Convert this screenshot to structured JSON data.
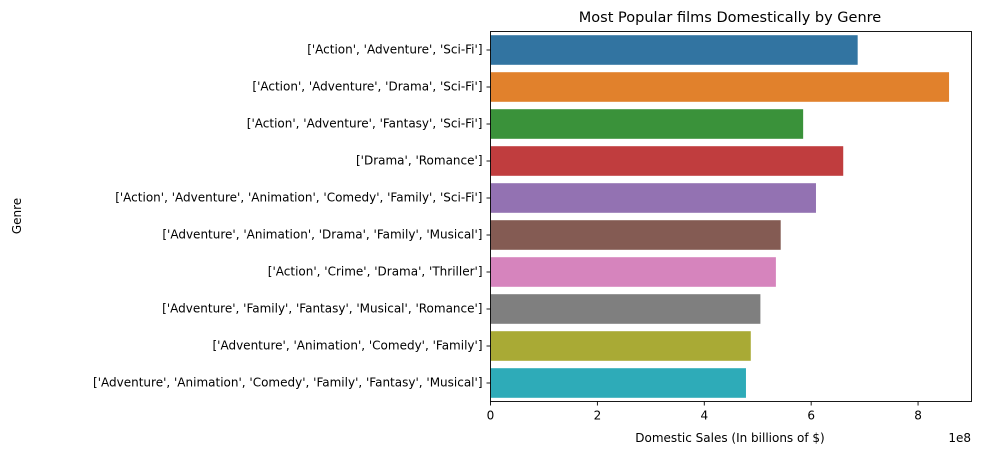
{
  "chart_data": {
    "type": "bar",
    "orientation": "horizontal",
    "title": "Most Popular films Domestically by Genre",
    "xlabel": "Domestic Sales (In billions of $)",
    "ylabel": "Genre",
    "x_offset_label": "1e8",
    "xlim": [
      0,
      9
    ],
    "xticks": [
      0,
      2,
      4,
      6,
      8
    ],
    "grid": false,
    "legend": false,
    "categories": [
      "['Action', 'Adventure', 'Sci-Fi']",
      "['Action', 'Adventure', 'Drama', 'Sci-Fi']",
      "['Action', 'Adventure', 'Fantasy', 'Sci-Fi']",
      "['Drama', 'Romance']",
      "['Action', 'Adventure', 'Animation', 'Comedy', 'Family', 'Sci-Fi']",
      "['Adventure', 'Animation', 'Drama', 'Family', 'Musical']",
      "['Action', 'Crime', 'Drama', 'Thriller']",
      "['Adventure', 'Family', 'Fantasy', 'Musical', 'Romance']",
      "['Adventure', 'Animation', 'Comedy', 'Family']",
      "['Adventure', 'Animation', 'Comedy', 'Family', 'Fantasy', 'Musical']"
    ],
    "values": [
      6.87,
      8.58,
      5.85,
      6.6,
      6.09,
      5.43,
      5.34,
      5.05,
      4.87,
      4.78
    ],
    "colors": [
      "#3274a1",
      "#e1812c",
      "#3a923a",
      "#c03d3e",
      "#9372b2",
      "#845b53",
      "#d684bd",
      "#7f7f7f",
      "#a9aa35",
      "#2eabb8"
    ]
  }
}
